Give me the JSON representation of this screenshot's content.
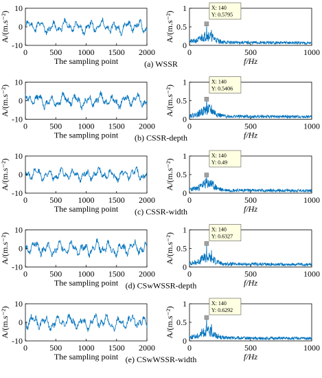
{
  "chart_data": [
    {
      "type": "line",
      "panel": "(a) WSSR",
      "row": 0,
      "caption": "(a) WSSR",
      "time": {
        "xlabel": "The sampling point",
        "ylabel": "A/(m.s⁻²)",
        "xlim": [
          0,
          2000
        ],
        "ylim": [
          -10,
          10
        ],
        "xticks": [
          "0",
          "500",
          "1000",
          "1500",
          "2000"
        ],
        "yticks": [
          "-10",
          "0",
          "10"
        ],
        "series": [
          {
            "amplitude": 2.8,
            "seed": 11
          }
        ]
      },
      "spectrum": {
        "xlabel": "f/Hz",
        "ylabel": "A/(m.s⁻²)",
        "xlim": [
          0,
          1000
        ],
        "ylim": [
          0,
          1
        ],
        "xticks": [
          "0",
          "500",
          "1000"
        ],
        "yticks": [
          "0",
          "0.5",
          "1"
        ],
        "peak": {
          "x": 140,
          "y": 0.5795
        },
        "seed": 21,
        "datatip": {
          "line1": "X: 140",
          "line2": "Y: 0.5795"
        }
      }
    },
    {
      "type": "line",
      "panel": "(b) CSSR-depth",
      "row": 1,
      "caption": "(b) CSSR-depth",
      "time": {
        "xlabel": "The sampling point",
        "ylabel": "A/(m.s⁻²)",
        "xlim": [
          0,
          2000
        ],
        "ylim": [
          -10,
          10
        ],
        "xticks": [
          "0",
          "500",
          "1000",
          "1500",
          "2000"
        ],
        "yticks": [
          "-10",
          "0",
          "10"
        ],
        "series": [
          {
            "amplitude": 3.0,
            "seed": 12
          }
        ]
      },
      "spectrum": {
        "xlabel": "f/Hz",
        "ylabel": "A/(m.s⁻²)",
        "xlim": [
          0,
          1000
        ],
        "ylim": [
          0,
          1
        ],
        "xticks": [
          "0",
          "500",
          "1000"
        ],
        "yticks": [
          "0",
          "0.5",
          "1"
        ],
        "peak": {
          "x": 140,
          "y": 0.5406
        },
        "seed": 22,
        "datatip": {
          "line1": "X: 140",
          "line2": "Y: 0.5406"
        }
      }
    },
    {
      "type": "line",
      "panel": "(c) CSSR-width",
      "row": 2,
      "caption": "(c) CSSR-width",
      "time": {
        "xlabel": "The sampling point",
        "ylabel": "A/(m.s⁻²)",
        "xlim": [
          0,
          2000
        ],
        "ylim": [
          -10,
          10
        ],
        "xticks": [
          "0",
          "500",
          "1000",
          "1500",
          "2000"
        ],
        "yticks": [
          "-10",
          "0",
          "10"
        ],
        "series": [
          {
            "amplitude": 2.6,
            "seed": 13
          }
        ]
      },
      "spectrum": {
        "xlabel": "f/Hz",
        "ylabel": "A/(m.s⁻²)",
        "xlim": [
          0,
          1000
        ],
        "ylim": [
          0,
          1
        ],
        "xticks": [
          "0",
          "500",
          "1000"
        ],
        "yticks": [
          "0",
          "0.5",
          "1"
        ],
        "peak": {
          "x": 140,
          "y": 0.49
        },
        "seed": 23,
        "datatip": {
          "line1": "X: 140",
          "line2": "Y: 0.49"
        }
      }
    },
    {
      "type": "line",
      "panel": "(d) CSwWSSR-depth",
      "row": 3,
      "caption": "(d) CSwWSSR-depth",
      "time": {
        "xlabel": "The sampling point",
        "ylabel": "A/(m.s⁻²)",
        "xlim": [
          0,
          2000
        ],
        "ylim": [
          -10,
          10
        ],
        "xticks": [
          "0",
          "500",
          "1000",
          "1500",
          "2000"
        ],
        "yticks": [
          "-10",
          "0",
          "10"
        ],
        "series": [
          {
            "amplitude": 3.2,
            "seed": 14
          }
        ]
      },
      "spectrum": {
        "xlabel": "f/Hz",
        "ylabel": "A/(m.s⁻²)",
        "xlim": [
          0,
          1000
        ],
        "ylim": [
          0,
          1
        ],
        "xticks": [
          "0",
          "500",
          "1000"
        ],
        "yticks": [
          "0",
          "0.5",
          "1"
        ],
        "peak": {
          "x": 140,
          "y": 0.6327
        },
        "seed": 24,
        "datatip": {
          "line1": "X: 140",
          "line2": "Y: 0.6327"
        }
      }
    },
    {
      "type": "line",
      "panel": "(e) CSwWSSR-width",
      "row": 4,
      "caption": "(e) CSwWSSR-width",
      "time": {
        "xlabel": "The sampling point",
        "ylabel": "A/(m.s⁻²)",
        "xlim": [
          0,
          2000
        ],
        "ylim": [
          -10,
          10
        ],
        "xticks": [
          "0",
          "500",
          "1000",
          "1500",
          "2000"
        ],
        "yticks": [
          "-10",
          "0",
          "10"
        ],
        "series": [
          {
            "amplitude": 3.1,
            "seed": 15
          }
        ]
      },
      "spectrum": {
        "xlabel": "f/Hz",
        "ylabel": "A/(m.s⁻²)",
        "xlim": [
          0,
          1000
        ],
        "ylim": [
          0,
          1
        ],
        "xticks": [
          "0",
          "500",
          "1000"
        ],
        "yticks": [
          "0",
          "0.5",
          "1"
        ],
        "peak": {
          "x": 140,
          "y": 0.6292
        },
        "seed": 25,
        "datatip": {
          "line1": "X: 140",
          "line2": "Y: 0.6292"
        }
      }
    }
  ],
  "colors": {
    "line": "#0072bd",
    "axis": "#000000",
    "tip_bg": "#ffffe1",
    "tip_border": "#555555",
    "marker": "#a0a0a0"
  }
}
